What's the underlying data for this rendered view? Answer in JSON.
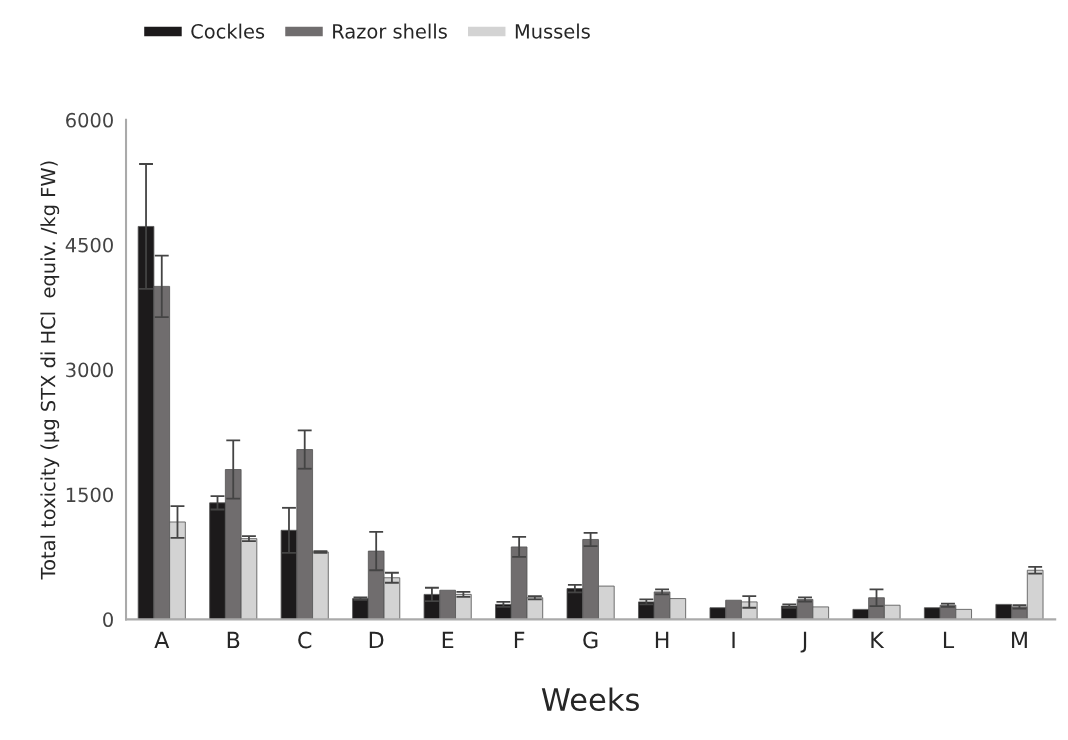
{
  "chart_data": {
    "type": "bar",
    "xlabel": "Weeks",
    "ylabel": "Total toxicity (µg STX di HCl  equiv. /kg FW)",
    "categories": [
      "A",
      "B",
      "C",
      "D",
      "E",
      "F",
      "G",
      "H",
      "I",
      "J",
      "K",
      "L",
      "M"
    ],
    "series": [
      {
        "name": "Cockles",
        "color": "#1c1a1b",
        "values": [
          4720,
          1400,
          1070,
          250,
          300,
          180,
          370,
          210,
          140,
          160,
          120,
          140,
          180
        ],
        "errors": [
          750,
          80,
          270,
          15,
          80,
          30,
          45,
          30,
          null,
          20,
          null,
          null,
          null
        ]
      },
      {
        "name": "Razor shells",
        "color": "#706d6e",
        "values": [
          4000,
          1800,
          2040,
          820,
          350,
          870,
          960,
          330,
          230,
          240,
          260,
          170,
          150
        ],
        "errors": [
          370,
          350,
          230,
          230,
          null,
          120,
          80,
          30,
          null,
          25,
          100,
          20,
          20
        ]
      },
      {
        "name": "Mussels",
        "color": "#d3d3d3",
        "values": [
          1170,
          970,
          810,
          500,
          300,
          260,
          400,
          250,
          210,
          150,
          170,
          120,
          590
        ],
        "errors": [
          190,
          30,
          10,
          60,
          30,
          20,
          null,
          null,
          70,
          null,
          null,
          null,
          40
        ]
      }
    ],
    "ylim": [
      0,
      6000
    ],
    "yticks": [
      0,
      1500,
      3000,
      4500,
      6000
    ],
    "grid": false,
    "legend": "top left"
  }
}
